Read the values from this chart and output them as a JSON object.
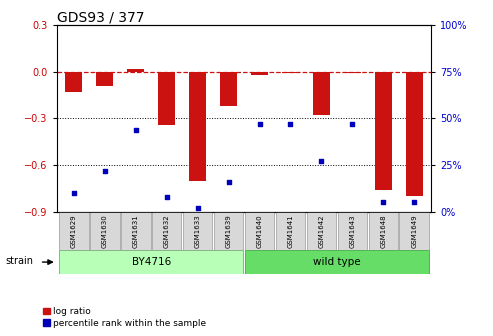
{
  "title": "GDS93 / 377",
  "samples": [
    "GSM1629",
    "GSM1630",
    "GSM1631",
    "GSM1632",
    "GSM1633",
    "GSM1639",
    "GSM1640",
    "GSM1641",
    "GSM1642",
    "GSM1643",
    "GSM1648",
    "GSM1649"
  ],
  "log_ratio": [
    -0.13,
    -0.09,
    0.02,
    -0.34,
    -0.7,
    -0.22,
    -0.02,
    -0.01,
    -0.28,
    -0.01,
    -0.76,
    -0.8
  ],
  "percentile_rank": [
    10,
    22,
    44,
    8,
    2,
    16,
    47,
    47,
    27,
    47,
    5,
    5
  ],
  "strain_groups": [
    {
      "label": "BY4716",
      "start": 0,
      "end": 5,
      "color_light": "#b8ffb8",
      "color_dark": "#b8ffb8"
    },
    {
      "label": "wild type",
      "start": 6,
      "end": 11,
      "color_light": "#66dd66",
      "color_dark": "#66dd66"
    }
  ],
  "bar_color": "#cc1111",
  "dot_color": "#0000bb",
  "ylim_left": [
    -0.9,
    0.3
  ],
  "ylim_right": [
    0,
    100
  ],
  "yticks_left": [
    -0.9,
    -0.6,
    -0.3,
    0.0,
    0.3
  ],
  "yticks_right": [
    0,
    25,
    50,
    75,
    100
  ],
  "dotted_lines": [
    -0.3,
    -0.6
  ],
  "bg_color": "#ffffff",
  "tick_label_color_left": "#cc0000",
  "tick_label_color_right": "#0000cc",
  "legend_items": [
    "log ratio",
    "percentile rank within the sample"
  ],
  "strain_label": "strain",
  "bar_width": 0.55
}
